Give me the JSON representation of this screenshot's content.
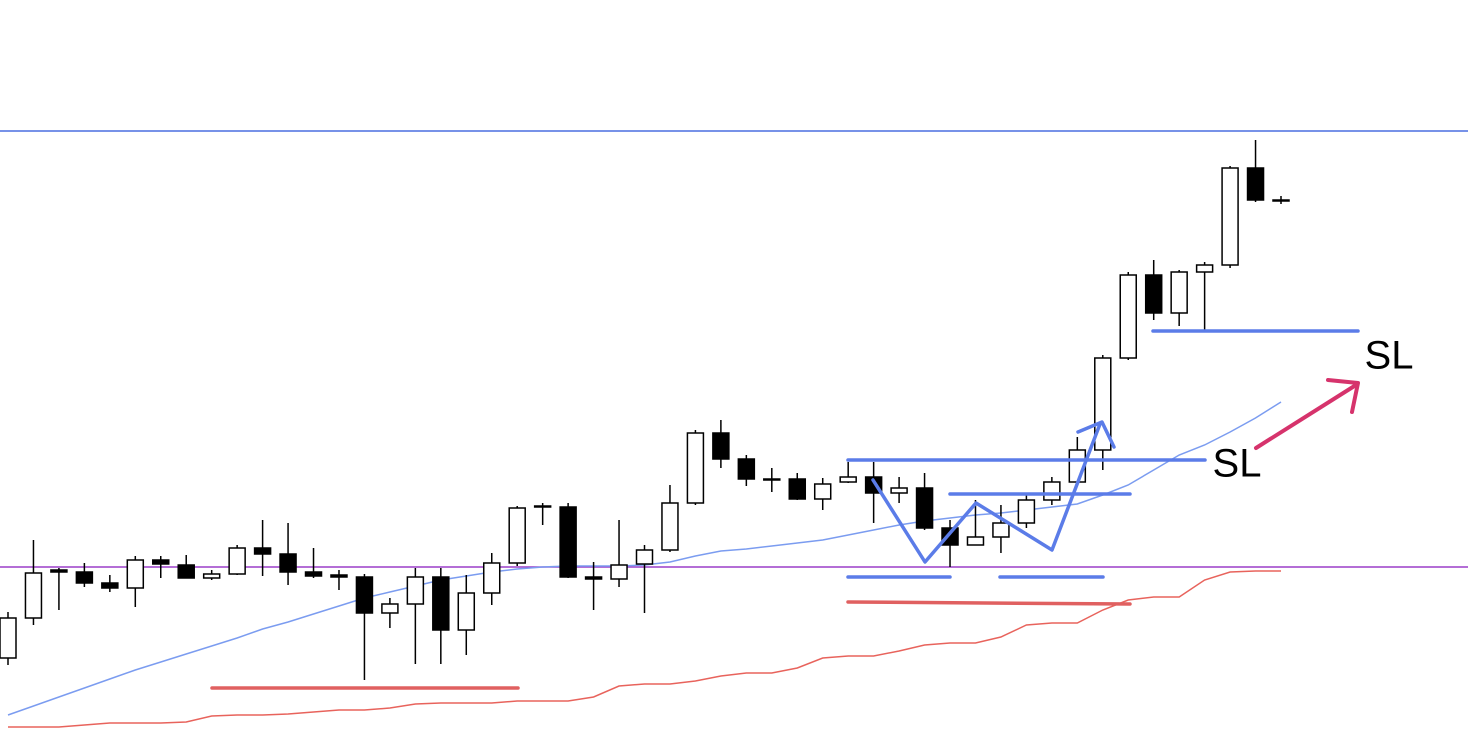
{
  "chart_data": {
    "type": "candlestick",
    "ylim": [
      0,
      748
    ],
    "open": [
      90,
      130,
      178,
      176,
      165,
      160,
      188,
      183,
      170,
      174,
      200,
      194,
      176,
      173,
      171,
      135,
      144,
      171,
      118,
      155,
      185,
      242,
      241,
      171,
      169,
      184,
      198,
      245,
      315,
      289,
      269,
      269,
      249,
      266,
      271,
      255,
      260,
      220,
      203,
      211,
      225,
      248,
      266,
      298,
      390,
      473,
      435,
      476,
      483,
      580,
      548
    ],
    "high": [
      136,
      208,
      180,
      185,
      173,
      192,
      192,
      193,
      178,
      203,
      228,
      225,
      200,
      178,
      174,
      150,
      180,
      180,
      173,
      195,
      242,
      245,
      245,
      186,
      228,
      203,
      263,
      318,
      328,
      293,
      280,
      275,
      270,
      286,
      286,
      271,
      275,
      228,
      248,
      243,
      253,
      271,
      311,
      393,
      476,
      488,
      478,
      486,
      582,
      608,
      552
    ],
    "low": [
      83,
      123,
      138,
      161,
      156,
      141,
      170,
      170,
      168,
      173,
      172,
      163,
      170,
      158,
      68,
      120,
      84,
      84,
      93,
      143,
      182,
      223,
      170,
      138,
      161,
      135,
      196,
      243,
      280,
      262,
      256,
      248,
      238,
      265,
      225,
      245,
      218,
      181,
      203,
      195,
      220,
      243,
      265,
      278,
      388,
      428,
      422,
      418,
      480,
      546,
      544
    ],
    "close": [
      130,
      175,
      176,
      165,
      160,
      188,
      184,
      170,
      174,
      200,
      194,
      176,
      172,
      171,
      135,
      144,
      171,
      118,
      155,
      185,
      240,
      241,
      171,
      169,
      183,
      198,
      245,
      315,
      289,
      269,
      268,
      249,
      264,
      271,
      255,
      260,
      220,
      203,
      211,
      225,
      248,
      266,
      298,
      390,
      473,
      435,
      476,
      483,
      580,
      548,
      547
    ],
    "series": [
      {
        "color": "#7b9cf0",
        "values": [
          33,
          42,
          51,
          60,
          69,
          78,
          86,
          94,
          102,
          110,
          119,
          126,
          134,
          142,
          150,
          156,
          162,
          168,
          172,
          176,
          179,
          181,
          182,
          182,
          182,
          183,
          186,
          192,
          197,
          199,
          202,
          205,
          208,
          213,
          218,
          223,
          227,
          230,
          233,
          235,
          238,
          241,
          244,
          253,
          263,
          278,
          293,
          303,
          316,
          330,
          346
        ]
      },
      {
        "color": "#e8635c",
        "values": [
          21,
          21,
          21,
          23,
          25,
          25,
          25,
          26,
          32,
          33,
          33,
          34,
          36,
          38,
          38,
          40,
          44,
          45,
          45,
          45,
          47,
          47,
          47,
          51,
          62,
          64,
          64,
          67,
          72,
          75,
          75,
          80,
          90,
          92,
          92,
          97,
          103,
          105,
          105,
          111,
          123,
          125,
          125,
          138,
          148,
          151,
          151,
          168,
          176,
          177,
          177
        ]
      }
    ],
    "hlines": [
      {
        "value": 617,
        "color": "#4a6fe0"
      },
      {
        "value": 181,
        "color": "#9b3fc8"
      }
    ],
    "annotations": [
      "SL",
      "SL"
    ]
  }
}
